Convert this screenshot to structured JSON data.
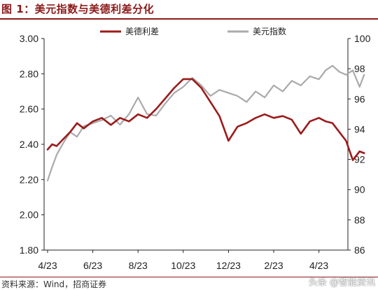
{
  "figure": {
    "title": "图 1：美元指数与美德利差分化",
    "source": "资料来源：Wind，招商证券",
    "watermark": "头条 @智能资讯"
  },
  "colors": {
    "spread": "#9b1b1b",
    "dxy": "#aaaaaa",
    "title": "#8b1a1a",
    "axis": "#222222"
  },
  "chart_data": {
    "type": "line",
    "title": "",
    "xlabel": "",
    "ylabel": "",
    "grid": false,
    "legend_position": "top",
    "x_ticks": [
      "4/23",
      "6/23",
      "8/23",
      "10/23",
      "12/23",
      "2/23",
      "4/23"
    ],
    "y_left": {
      "lim": [
        1.8,
        3.0
      ],
      "ticks": [
        "1.80",
        "2.00",
        "2.20",
        "2.40",
        "2.60",
        "2.80",
        "3.00"
      ]
    },
    "y_right": {
      "lim": [
        86,
        100
      ],
      "ticks": [
        "86",
        "88",
        "90",
        "92",
        "94",
        "96",
        "98",
        "100"
      ]
    },
    "series": [
      {
        "name": "美德利差",
        "axis": "left",
        "color": "#9b1b1b",
        "x": [
          0,
          0.1,
          0.2,
          0.35,
          0.5,
          0.65,
          0.8,
          1.0,
          1.2,
          1.4,
          1.6,
          1.8,
          2.0,
          2.2,
          2.4,
          2.6,
          2.8,
          3.0,
          3.2,
          3.4,
          3.6,
          3.8,
          4.0,
          4.2,
          4.4,
          4.6,
          4.8,
          5.0,
          5.2,
          5.4,
          5.6,
          5.8,
          6.0,
          6.15,
          6.3,
          6.45,
          6.6,
          6.75,
          6.9,
          7.0
        ],
        "y": [
          2.37,
          2.4,
          2.39,
          2.43,
          2.47,
          2.52,
          2.49,
          2.53,
          2.55,
          2.51,
          2.55,
          2.53,
          2.57,
          2.55,
          2.6,
          2.66,
          2.72,
          2.77,
          2.77,
          2.72,
          2.64,
          2.56,
          2.42,
          2.5,
          2.52,
          2.55,
          2.57,
          2.55,
          2.56,
          2.54,
          2.46,
          2.53,
          2.55,
          2.53,
          2.52,
          2.47,
          2.42,
          2.31,
          2.36,
          2.35
        ]
      },
      {
        "name": "美元指数",
        "axis": "right",
        "color": "#aaaaaa",
        "x": [
          0,
          0.1,
          0.2,
          0.35,
          0.5,
          0.65,
          0.8,
          1.0,
          1.2,
          1.4,
          1.6,
          1.8,
          2.0,
          2.2,
          2.4,
          2.6,
          2.8,
          3.0,
          3.2,
          3.4,
          3.6,
          3.8,
          4.0,
          4.2,
          4.4,
          4.6,
          4.8,
          5.0,
          5.2,
          5.4,
          5.6,
          5.8,
          6.0,
          6.15,
          6.3,
          6.45,
          6.6,
          6.75,
          6.9,
          7.0
        ],
        "y": [
          90.6,
          91.5,
          92.3,
          93.1,
          93.8,
          93.5,
          94.2,
          94.4,
          94.6,
          94.9,
          94.3,
          95.0,
          96.1,
          95.0,
          94.9,
          95.7,
          96.4,
          96.8,
          97.4,
          96.9,
          96.2,
          96.6,
          96.4,
          96.2,
          95.8,
          96.5,
          96.1,
          96.9,
          96.5,
          97.2,
          96.9,
          97.5,
          97.3,
          97.9,
          98.2,
          97.8,
          97.6,
          97.9,
          96.8,
          97.6
        ]
      }
    ]
  }
}
